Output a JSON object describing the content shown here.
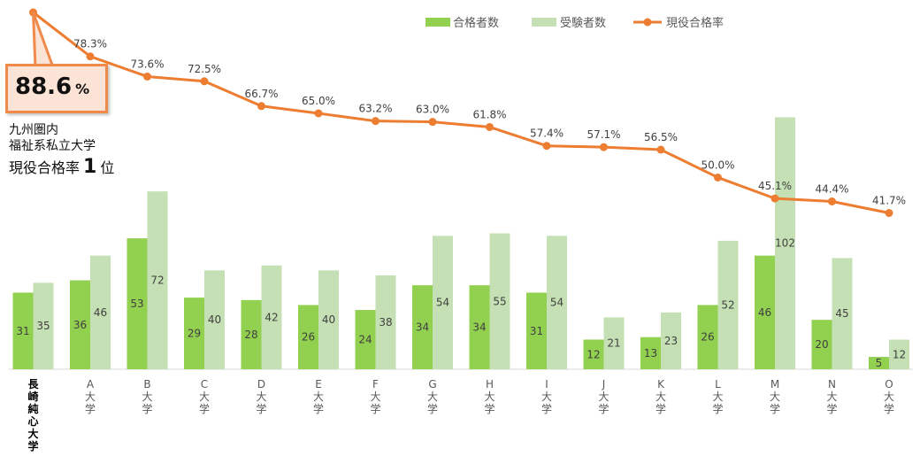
{
  "chart_data": {
    "type": "bar",
    "categories": [
      "長崎純心大学",
      "A大学",
      "B大学",
      "C大学",
      "D大学",
      "E大学",
      "F大学",
      "G大学",
      "H大学",
      "I大学",
      "J大学",
      "K大学",
      "L大学",
      "M大学",
      "N大学",
      "O大学"
    ],
    "series": [
      {
        "name": "合格者数",
        "type": "bar",
        "color": "#92d050",
        "values": [
          31,
          36,
          53,
          29,
          28,
          26,
          24,
          34,
          34,
          31,
          12,
          13,
          26,
          46,
          20,
          5
        ]
      },
      {
        "name": "受験者数",
        "type": "bar",
        "color": "#c5e0b4",
        "values": [
          35,
          46,
          72,
          40,
          42,
          40,
          38,
          54,
          55,
          54,
          21,
          23,
          52,
          102,
          45,
          12
        ]
      },
      {
        "name": "現役合格率",
        "type": "line",
        "color": "#ed7d31",
        "values": [
          88.6,
          78.3,
          73.6,
          72.5,
          66.7,
          65.0,
          63.2,
          63.0,
          61.8,
          57.4,
          57.1,
          56.5,
          50.0,
          45.1,
          44.4,
          41.7
        ],
        "labels": [
          "",
          "78.3%",
          "73.6%",
          "72.5%",
          "66.7%",
          "65.0%",
          "63.2%",
          "63.0%",
          "61.8%",
          "57.4%",
          "57.1%",
          "56.5%",
          "50.0%",
          "45.1%",
          "44.4%",
          "41.7%"
        ]
      }
    ],
    "legend_position": "top-right",
    "grid": false
  },
  "callout": {
    "value": "88.6",
    "unit": "%",
    "line1": "九州圏内",
    "line2": "福祉系私立大学",
    "rank_prefix": "現役合格率",
    "rank_number": "1",
    "rank_suffix": "位"
  }
}
